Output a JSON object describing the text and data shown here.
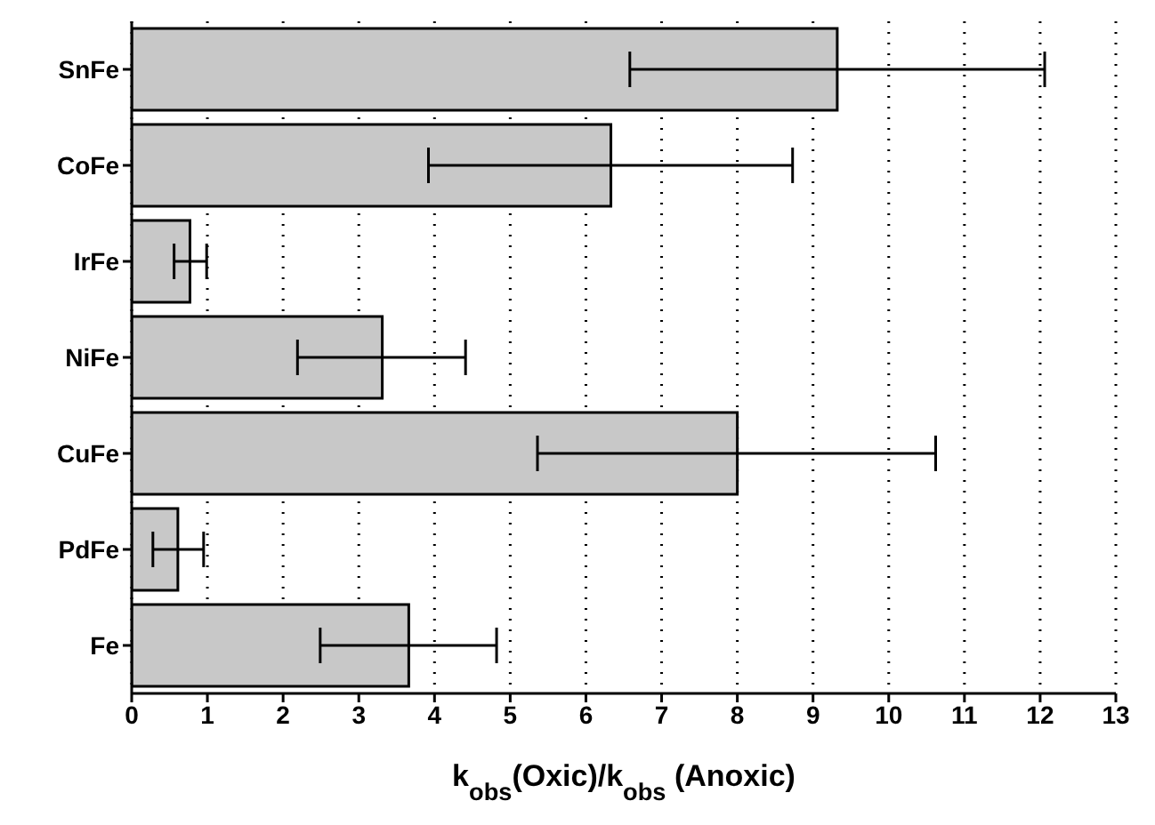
{
  "chart_data": {
    "type": "bar",
    "orientation": "horizontal",
    "xlabel": "k$_{obs}$(Oxic)/k$_{obs}$ (Anoxic)",
    "categories": [
      "SnFe",
      "CoFe",
      "IrFe",
      "NiFe",
      "CuFe",
      "PdFe",
      "Fe"
    ],
    "values": [
      9.32,
      6.33,
      0.77,
      3.31,
      8.0,
      0.61,
      3.66
    ],
    "errors": [
      [
        6.58,
        12.06
      ],
      [
        3.92,
        8.73
      ],
      [
        0.56,
        0.99
      ],
      [
        2.19,
        4.41
      ],
      [
        5.36,
        10.62
      ],
      [
        0.28,
        0.95
      ],
      [
        2.49,
        4.82
      ]
    ],
    "color": "#c8c8c8",
    "xlim": [
      0,
      13
    ],
    "xticks": [
      0,
      1,
      2,
      3,
      4,
      5,
      6,
      7,
      8,
      9,
      10,
      11,
      12,
      13
    ],
    "grid": "x",
    "legend": false
  }
}
